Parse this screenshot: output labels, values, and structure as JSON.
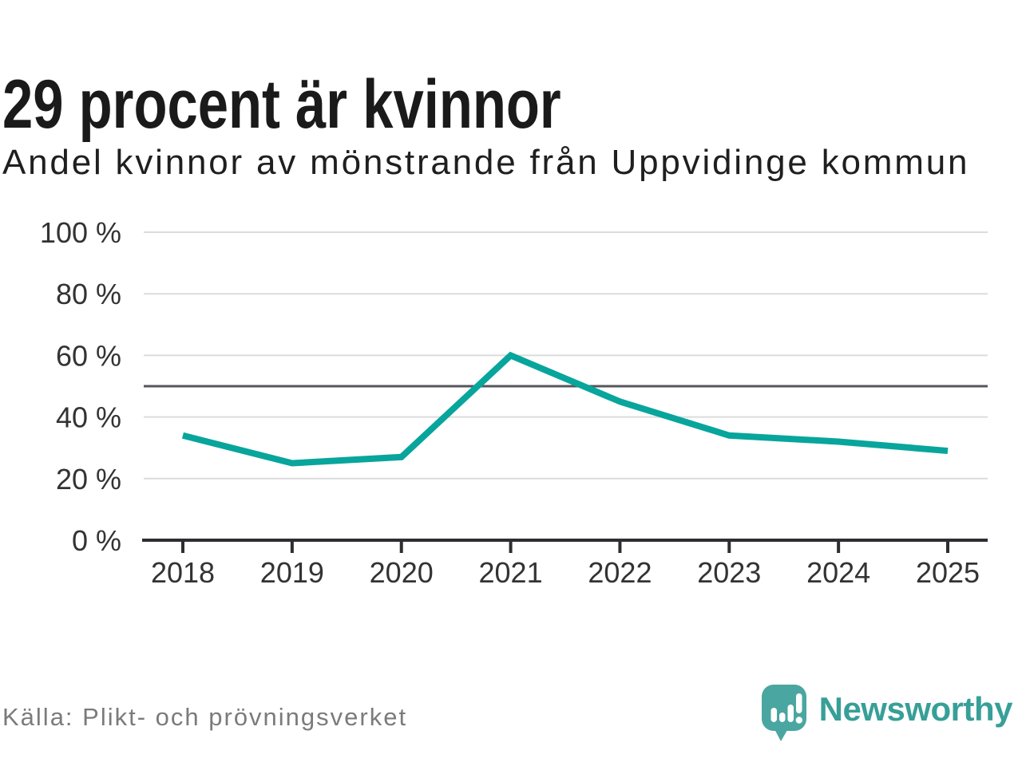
{
  "page": {
    "title": "29 procent är kvinnor",
    "subtitle": "Andel kvinnor av mönstrande från Uppvidinge kommun",
    "source": "Källa: Plikt- och prövningsverket",
    "logo_text": "Newsworthy"
  },
  "colors": {
    "line": "#08a59c",
    "grid": "#dcdcdc",
    "reference_line": "#55565b",
    "axis": "#2d2d32",
    "tick_label": "#333333",
    "title": "#1a1a1a",
    "source_text": "#7b7b7b",
    "logo_icon": "#4aa6a0",
    "logo_text": "#379f98"
  },
  "chart_data": {
    "type": "line",
    "title": "29 procent är kvinnor",
    "subtitle": "Andel kvinnor av mönstrande från Uppvidinge kommun",
    "categories": [
      "2018",
      "2019",
      "2020",
      "2021",
      "2022",
      "2023",
      "2024",
      "2025"
    ],
    "series": [
      {
        "name": "Andel kvinnor av mönstrande",
        "values": [
          34,
          25,
          27,
          60,
          45,
          34,
          32,
          29
        ]
      }
    ],
    "unit": "%",
    "ylim": [
      0,
      100
    ],
    "yticks": [
      0,
      20,
      40,
      60,
      80,
      100
    ],
    "ytick_format": "{v} %",
    "reference_line": 50,
    "grid": true,
    "legend": false,
    "xlabel": "",
    "ylabel": ""
  }
}
